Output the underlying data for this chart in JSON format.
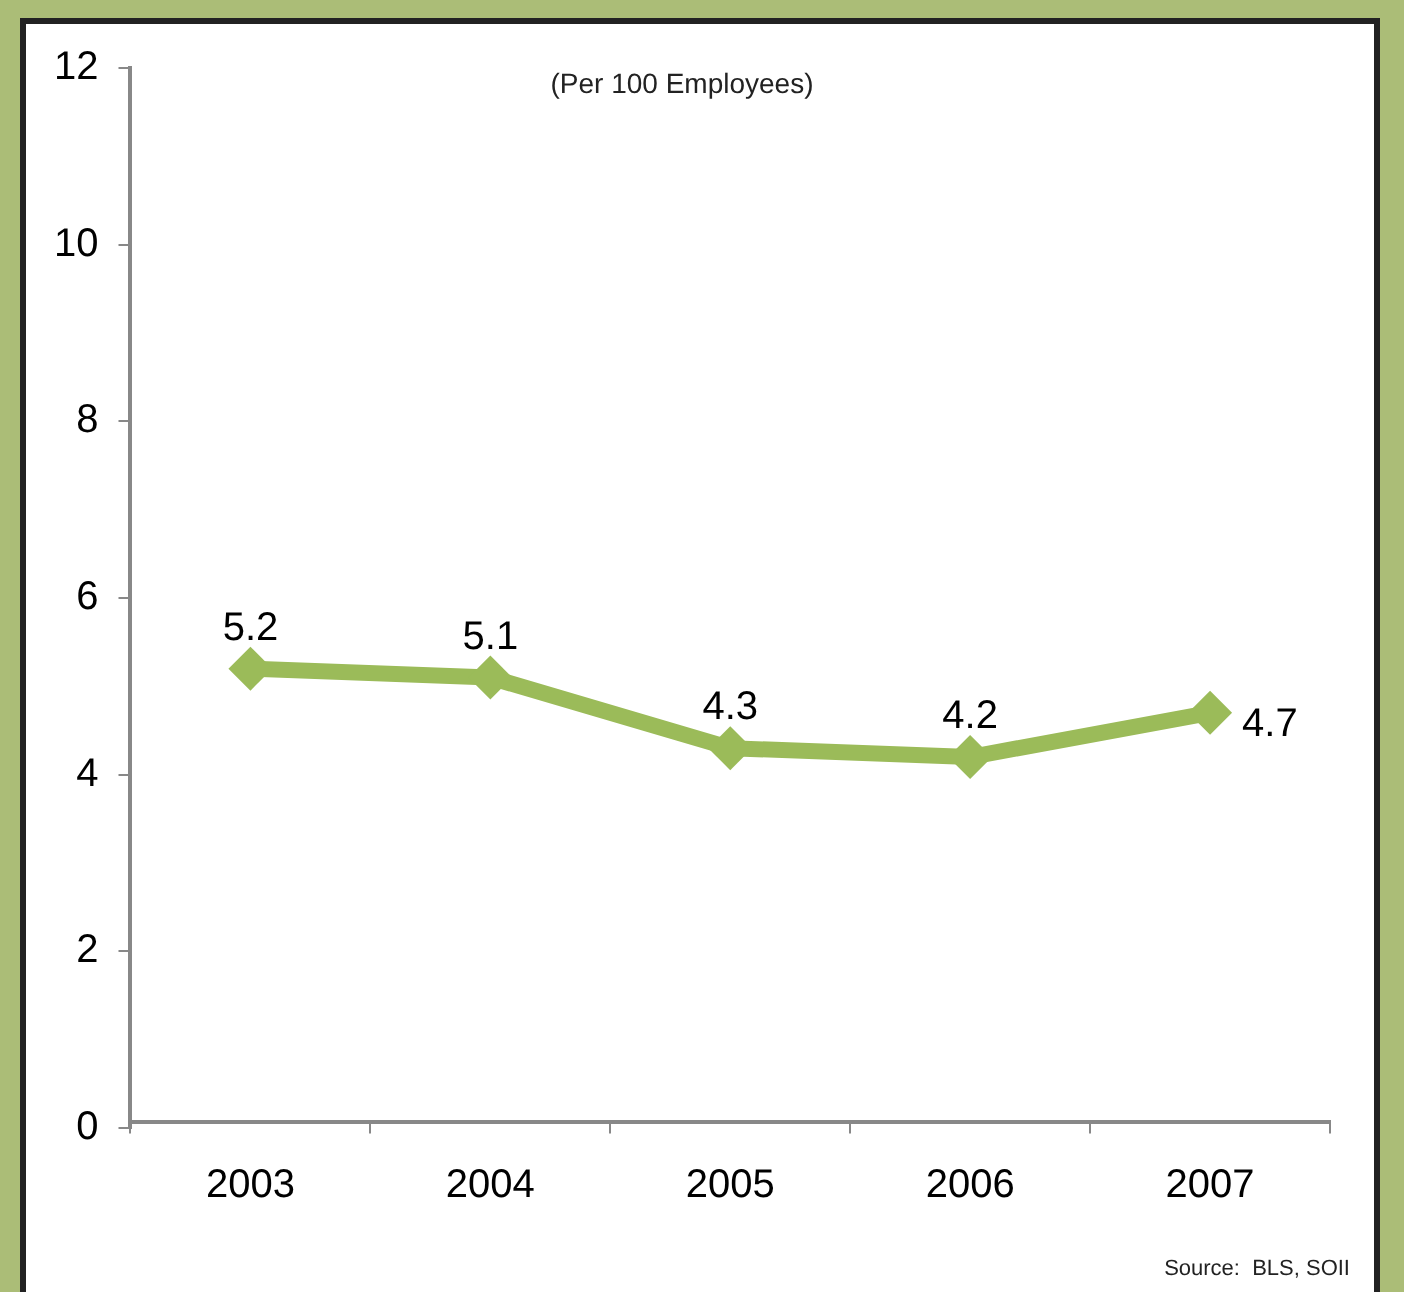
{
  "chart_data": {
    "type": "line",
    "subtitle": "(Per 100 Employees)",
    "categories": [
      "2003",
      "2004",
      "2005",
      "2006",
      "2007"
    ],
    "series": [
      {
        "color": "#9bbb59",
        "values": [
          5.2,
          5.1,
          4.3,
          4.2,
          4.7
        ]
      }
    ],
    "ylim": [
      0,
      12
    ],
    "yticks": [
      0,
      2,
      4,
      6,
      8,
      10,
      12
    ],
    "grid": false,
    "legend": false,
    "marker": "diamond",
    "line_style": "solid",
    "data_labels": true,
    "annotations": [
      "Source:  BLS, SOII"
    ]
  }
}
